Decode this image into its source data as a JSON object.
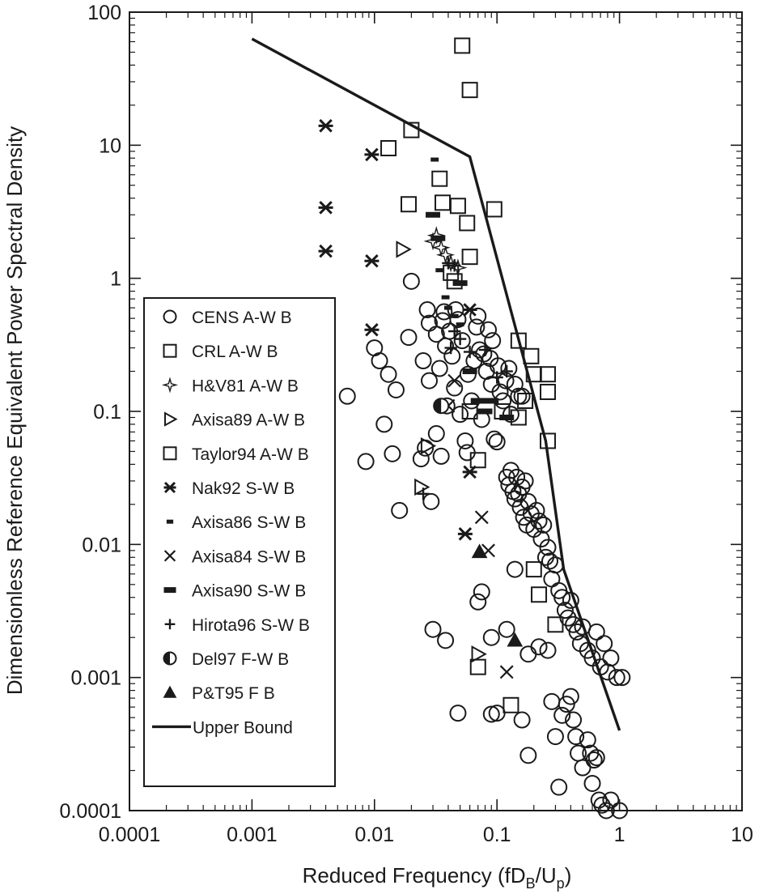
{
  "chart_data": {
    "type": "scatter",
    "title": "",
    "xlabel_main": "Reduced Frequency (fD",
    "xlabel_sub1": "B",
    "xlabel_mid": "/U",
    "xlabel_sub2": "p",
    "xlabel_end": ")",
    "ylabel": "Dimensionless Reference Equivalent Power Spectral Density",
    "xscale": "log",
    "yscale": "log",
    "xlim": [
      0.0001,
      10
    ],
    "ylim": [
      0.0001,
      100
    ],
    "x_ticks": [
      "0.0001",
      "0.001",
      "0.01",
      "0.1",
      "1",
      "10"
    ],
    "y_ticks": [
      "0.0001",
      "0.001",
      "0.01",
      "0.1",
      "1",
      "10",
      "100"
    ],
    "grid": false,
    "legend_position": "left-center",
    "series": [
      {
        "name": "CENS A-W B",
        "marker": "circle",
        "points": [
          [
            0.006,
            0.13
          ],
          [
            0.0085,
            0.042
          ],
          [
            0.01,
            0.3
          ],
          [
            0.011,
            0.24
          ],
          [
            0.012,
            0.08
          ],
          [
            0.013,
            0.19
          ],
          [
            0.014,
            0.048
          ],
          [
            0.015,
            0.145
          ],
          [
            0.016,
            0.018
          ],
          [
            0.019,
            0.36
          ],
          [
            0.02,
            0.95
          ],
          [
            0.024,
            0.044
          ],
          [
            0.025,
            0.24
          ],
          [
            0.026,
            0.053
          ],
          [
            0.027,
            0.58
          ],
          [
            0.028,
            0.46
          ],
          [
            0.028,
            0.17
          ],
          [
            0.029,
            0.021
          ],
          [
            0.032,
            0.38
          ],
          [
            0.032,
            0.068
          ],
          [
            0.034,
            0.21
          ],
          [
            0.035,
            0.046
          ],
          [
            0.036,
            0.48
          ],
          [
            0.037,
            0.56
          ],
          [
            0.038,
            0.31
          ],
          [
            0.039,
            0.11
          ],
          [
            0.041,
            0.4
          ],
          [
            0.043,
            0.26
          ],
          [
            0.045,
            0.15
          ],
          [
            0.046,
            0.58
          ],
          [
            0.048,
            0.49
          ],
          [
            0.05,
            0.095
          ],
          [
            0.052,
            0.34
          ],
          [
            0.055,
            0.06
          ],
          [
            0.057,
            0.049
          ],
          [
            0.058,
            0.19
          ],
          [
            0.062,
            0.12
          ],
          [
            0.065,
            0.24
          ],
          [
            0.068,
            0.43
          ],
          [
            0.07,
            0.52
          ],
          [
            0.072,
            0.29
          ],
          [
            0.075,
            0.087
          ],
          [
            0.078,
            0.27
          ],
          [
            0.082,
            0.2
          ],
          [
            0.085,
            0.41
          ],
          [
            0.088,
            0.25
          ],
          [
            0.09,
            0.16
          ],
          [
            0.092,
            0.34
          ],
          [
            0.095,
            0.062
          ],
          [
            0.1,
            0.059
          ],
          [
            0.102,
            0.22
          ],
          [
            0.106,
            0.14
          ],
          [
            0.112,
            0.12
          ],
          [
            0.118,
            0.17
          ],
          [
            0.125,
            0.21
          ],
          [
            0.13,
            0.095
          ],
          [
            0.14,
            0.16
          ],
          [
            0.15,
            0.13
          ],
          [
            0.16,
            0.13
          ],
          [
            0.12,
            0.032
          ],
          [
            0.125,
            0.028
          ],
          [
            0.13,
            0.036
          ],
          [
            0.135,
            0.025
          ],
          [
            0.14,
            0.022
          ],
          [
            0.145,
            0.032
          ],
          [
            0.15,
            0.024
          ],
          [
            0.155,
            0.019
          ],
          [
            0.16,
            0.027
          ],
          [
            0.165,
            0.016
          ],
          [
            0.17,
            0.03
          ],
          [
            0.175,
            0.014
          ],
          [
            0.18,
            0.021
          ],
          [
            0.19,
            0.017
          ],
          [
            0.2,
            0.013
          ],
          [
            0.21,
            0.018
          ],
          [
            0.22,
            0.015
          ],
          [
            0.23,
            0.011
          ],
          [
            0.24,
            0.014
          ],
          [
            0.25,
            0.008
          ],
          [
            0.26,
            0.0095
          ],
          [
            0.27,
            0.0075
          ],
          [
            0.28,
            0.0055
          ],
          [
            0.3,
            0.007
          ],
          [
            0.32,
            0.0045
          ],
          [
            0.34,
            0.004
          ],
          [
            0.36,
            0.0032
          ],
          [
            0.38,
            0.0028
          ],
          [
            0.4,
            0.0038
          ],
          [
            0.42,
            0.0025
          ],
          [
            0.45,
            0.0022
          ],
          [
            0.48,
            0.0018
          ],
          [
            0.5,
            0.0024
          ],
          [
            0.55,
            0.0016
          ],
          [
            0.6,
            0.0014
          ],
          [
            0.65,
            0.0022
          ],
          [
            0.7,
            0.0012
          ],
          [
            0.75,
            0.0018
          ],
          [
            0.8,
            0.0011
          ],
          [
            0.85,
            0.0014
          ],
          [
            0.95,
            0.001
          ],
          [
            1.05,
            0.001
          ],
          [
            0.07,
            0.0037
          ],
          [
            0.075,
            0.0044
          ],
          [
            0.03,
            0.0023
          ],
          [
            0.038,
            0.0019
          ],
          [
            0.048,
            0.00054
          ],
          [
            0.09,
            0.002
          ],
          [
            0.09,
            0.00053
          ],
          [
            0.1,
            0.00054
          ],
          [
            0.12,
            0.0023
          ],
          [
            0.14,
            0.0065
          ],
          [
            0.16,
            0.00048
          ],
          [
            0.18,
            0.0015
          ],
          [
            0.18,
            0.00026
          ],
          [
            0.22,
            0.0017
          ],
          [
            0.26,
            0.0016
          ],
          [
            0.28,
            0.00066
          ],
          [
            0.3,
            0.00036
          ],
          [
            0.32,
            0.00015
          ],
          [
            0.34,
            0.00052
          ],
          [
            0.37,
            0.00063
          ],
          [
            0.4,
            0.00072
          ],
          [
            0.42,
            0.00048
          ],
          [
            0.44,
            0.00036
          ],
          [
            0.46,
            0.00027
          ],
          [
            0.5,
            0.00021
          ],
          [
            0.55,
            0.00034
          ],
          [
            0.58,
            0.00027
          ],
          [
            0.6,
            0.00016
          ],
          [
            0.62,
            0.00024
          ],
          [
            0.65,
            0.00025
          ],
          [
            0.68,
            0.00012
          ],
          [
            0.72,
            0.00011
          ],
          [
            0.78,
            0.0001
          ],
          [
            0.85,
            0.00012
          ],
          [
            1.0,
            0.0001
          ]
        ]
      },
      {
        "name": "CRL A-W B",
        "marker": "square",
        "points": [
          [
            0.052,
            56
          ],
          [
            0.06,
            26
          ],
          [
            0.02,
            13
          ],
          [
            0.013,
            9.5
          ],
          [
            0.019,
            3.6
          ],
          [
            0.034,
            5.6
          ],
          [
            0.036,
            3.7
          ],
          [
            0.048,
            3.5
          ],
          [
            0.057,
            2.6
          ],
          [
            0.095,
            3.3
          ],
          [
            0.06,
            1.45
          ],
          [
            0.042,
            1.1
          ],
          [
            0.045,
            0.95
          ],
          [
            0.15,
            0.34
          ],
          [
            0.19,
            0.26
          ],
          [
            0.2,
            0.19
          ],
          [
            0.26,
            0.19
          ],
          [
            0.26,
            0.14
          ],
          [
            0.17,
            0.12
          ],
          [
            0.15,
            0.09
          ],
          [
            0.11,
            0.1
          ],
          [
            0.06,
            0.1
          ],
          [
            0.07,
            0.043
          ],
          [
            0.26,
            0.06
          ]
        ]
      },
      {
        "name": "H&V81 A-W B",
        "marker": "star4",
        "points": [
          [
            0.03,
            1.9
          ],
          [
            0.032,
            2.1
          ],
          [
            0.035,
            1.7
          ],
          [
            0.038,
            1.5
          ],
          [
            0.042,
            1.3
          ],
          [
            0.048,
            1.2
          ]
        ]
      },
      {
        "name": "Axisa89 A-W B",
        "marker": "triangle-right",
        "points": [
          [
            0.017,
            1.65
          ],
          [
            0.027,
            0.055
          ],
          [
            0.024,
            0.027
          ],
          [
            0.07,
            0.0015
          ]
        ]
      },
      {
        "name": "Taylor94 A-W B",
        "marker": "square",
        "points": [
          [
            0.2,
            0.0065
          ],
          [
            0.22,
            0.0042
          ],
          [
            0.3,
            0.0025
          ],
          [
            0.07,
            0.0012
          ],
          [
            0.13,
            0.00062
          ]
        ]
      },
      {
        "name": "Nak92 S-W B",
        "marker": "asterisk",
        "points": [
          [
            0.004,
            14
          ],
          [
            0.004,
            3.4
          ],
          [
            0.004,
            1.6
          ],
          [
            0.0095,
            8.5
          ],
          [
            0.0095,
            1.35
          ],
          [
            0.0095,
            0.41
          ],
          [
            0.06,
            0.58
          ],
          [
            0.06,
            0.035
          ],
          [
            0.055,
            0.012
          ]
        ]
      },
      {
        "name": "Axisa86 S-W B",
        "marker": "dash",
        "points": [
          [
            0.031,
            7.8
          ],
          [
            0.034,
            1.15
          ],
          [
            0.038,
            0.72
          ],
          [
            0.04,
            0.6
          ],
          [
            0.045,
            0.52
          ],
          [
            0.05,
            0.45
          ]
        ]
      },
      {
        "name": "Axisa84 S-W B",
        "marker": "x",
        "points": [
          [
            0.045,
            0.17
          ],
          [
            0.04,
            0.11
          ],
          [
            0.075,
            0.016
          ],
          [
            0.085,
            0.009
          ],
          [
            0.12,
            0.0011
          ]
        ]
      },
      {
        "name": "Axisa90 S-W B",
        "marker": "thickdash",
        "points": [
          [
            0.03,
            3.0
          ],
          [
            0.033,
            2.0
          ],
          [
            0.05,
            0.92
          ],
          [
            0.06,
            0.2
          ],
          [
            0.07,
            0.12
          ],
          [
            0.08,
            0.1
          ],
          [
            0.12,
            0.09
          ],
          [
            0.09,
            0.12
          ]
        ]
      },
      {
        "name": "Hirota96 S-W B",
        "marker": "plus",
        "points": [
          [
            0.025,
            0.024
          ],
          [
            0.04,
            1.3
          ],
          [
            0.045,
            1.25
          ],
          [
            0.042,
            0.3
          ],
          [
            0.045,
            0.4
          ],
          [
            0.05,
            0.35
          ],
          [
            0.06,
            0.28
          ],
          [
            0.08,
            0.29
          ],
          [
            0.1,
            0.18
          ],
          [
            0.12,
            0.2
          ]
        ]
      },
      {
        "name": "Del97 F-W B",
        "marker": "halfcircle",
        "points": [
          [
            0.035,
            0.11
          ]
        ]
      },
      {
        "name": "P&T95 F B",
        "marker": "triangle-up",
        "points": [
          [
            0.072,
            0.0088
          ],
          [
            0.14,
            0.0019
          ]
        ]
      },
      {
        "name": "Upper Bound",
        "marker": "line",
        "points": [
          [
            0.001,
            63
          ],
          [
            0.06,
            8.2
          ],
          [
            0.25,
            0.06
          ],
          [
            0.35,
            0.0065
          ],
          [
            1.0,
            0.0004
          ]
        ]
      }
    ]
  }
}
